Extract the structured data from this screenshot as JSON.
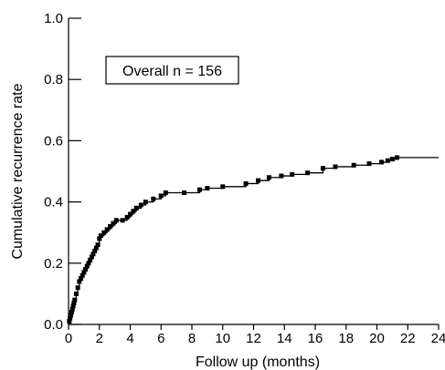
{
  "chart_data": {
    "type": "line",
    "step": true,
    "xlabel": "Follow up (months)",
    "ylabel": "Cumulative recurrence rate",
    "xlim": [
      0,
      24
    ],
    "ylim": [
      0,
      1.0
    ],
    "x_ticks": [
      0,
      2,
      4,
      6,
      8,
      10,
      12,
      14,
      16,
      18,
      20,
      22,
      24
    ],
    "x_tick_labels": [
      "0",
      "2",
      "4",
      "6",
      "8",
      "10",
      "12",
      "14",
      "16",
      "18",
      "20",
      "22",
      "24"
    ],
    "y_ticks": [
      0,
      0.2,
      0.4,
      0.6,
      0.8,
      1.0
    ],
    "y_tick_labels": [
      "0.0",
      "0.2",
      "0.4",
      "0.6",
      "0.8",
      "1.0"
    ],
    "grid": false,
    "annotation": "Overall n = 156",
    "series": [
      {
        "color": "#000000",
        "marker": "square",
        "points": [
          [
            0,
            0
          ],
          [
            0.05,
            0.01
          ],
          [
            0.1,
            0.02
          ],
          [
            0.15,
            0.03
          ],
          [
            0.2,
            0.04
          ],
          [
            0.25,
            0.05
          ],
          [
            0.3,
            0.06
          ],
          [
            0.35,
            0.07
          ],
          [
            0.4,
            0.08
          ],
          [
            0.5,
            0.1
          ],
          [
            0.6,
            0.12
          ],
          [
            0.7,
            0.14
          ],
          [
            0.8,
            0.15
          ],
          [
            0.9,
            0.16
          ],
          [
            1.0,
            0.17
          ],
          [
            1.1,
            0.18
          ],
          [
            1.2,
            0.19
          ],
          [
            1.3,
            0.2
          ],
          [
            1.4,
            0.21
          ],
          [
            1.5,
            0.22
          ],
          [
            1.6,
            0.23
          ],
          [
            1.7,
            0.24
          ],
          [
            1.8,
            0.25
          ],
          [
            1.9,
            0.26
          ],
          [
            2.0,
            0.28
          ],
          [
            2.1,
            0.29
          ],
          [
            2.3,
            0.3
          ],
          [
            2.5,
            0.31
          ],
          [
            2.7,
            0.32
          ],
          [
            2.9,
            0.33
          ],
          [
            3.1,
            0.34
          ],
          [
            3.5,
            0.34
          ],
          [
            3.8,
            0.35
          ],
          [
            4.0,
            0.36
          ],
          [
            4.2,
            0.37
          ],
          [
            4.4,
            0.38
          ],
          [
            4.7,
            0.39
          ],
          [
            5.0,
            0.4
          ],
          [
            5.5,
            0.41
          ],
          [
            6.0,
            0.42
          ],
          [
            6.3,
            0.43
          ],
          [
            7.5,
            0.43
          ],
          [
            8.5,
            0.44
          ],
          [
            9.0,
            0.445
          ],
          [
            10.0,
            0.45
          ],
          [
            11.5,
            0.46
          ],
          [
            12.3,
            0.47
          ],
          [
            13.0,
            0.48
          ],
          [
            13.8,
            0.485
          ],
          [
            14.5,
            0.49
          ],
          [
            15.5,
            0.495
          ],
          [
            16.5,
            0.51
          ],
          [
            17.3,
            0.515
          ],
          [
            18.5,
            0.52
          ],
          [
            19.5,
            0.525
          ],
          [
            20.3,
            0.53
          ],
          [
            20.7,
            0.535
          ],
          [
            21.0,
            0.54
          ],
          [
            21.3,
            0.545
          ]
        ],
        "end_x": 24
      }
    ]
  }
}
